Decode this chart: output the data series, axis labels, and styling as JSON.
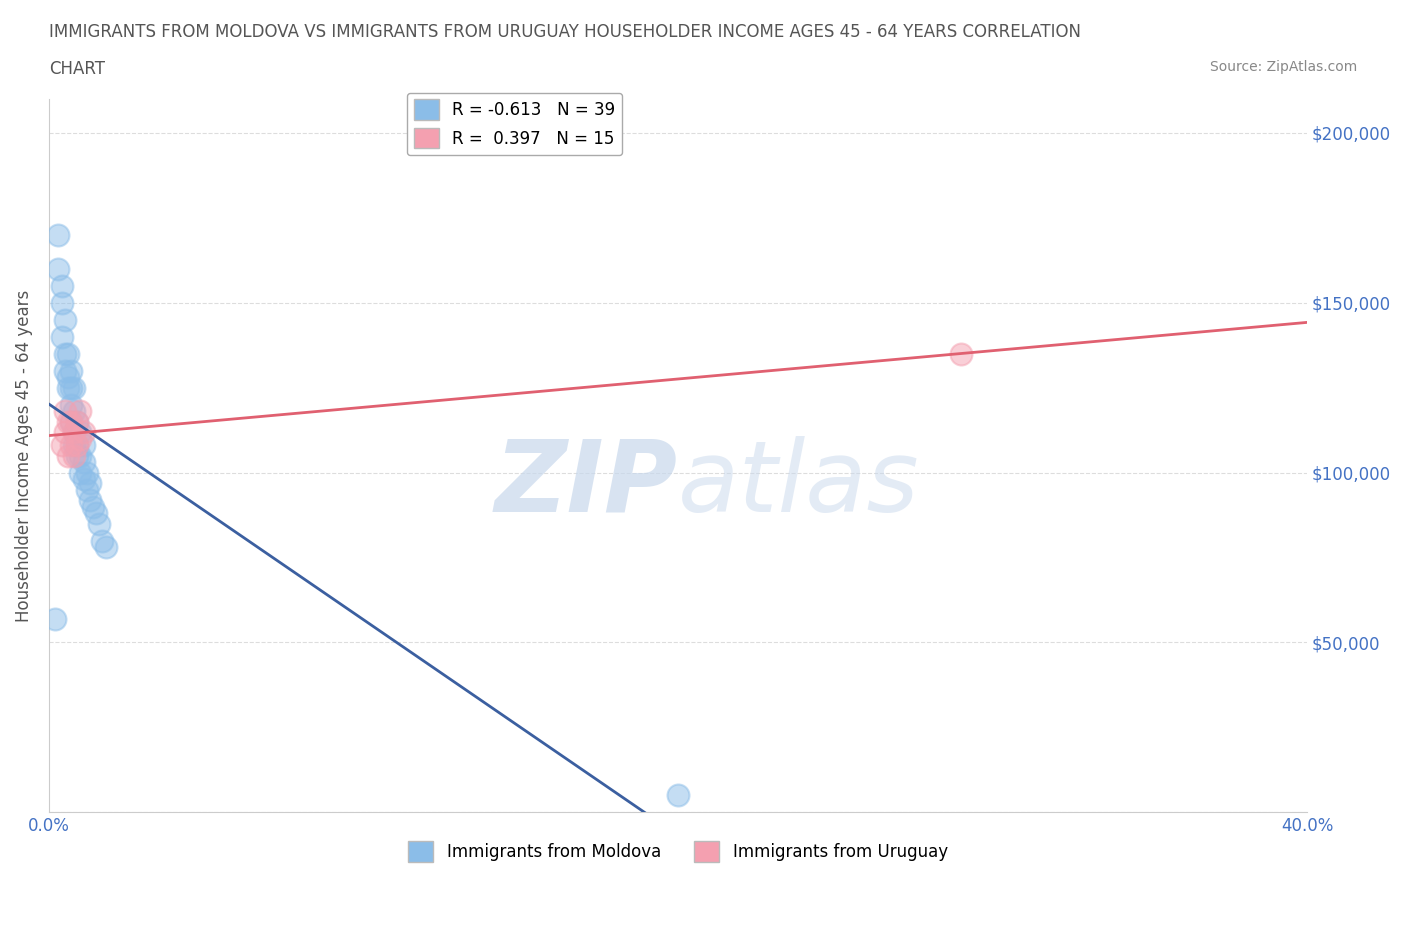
{
  "title_line1": "IMMIGRANTS FROM MOLDOVA VS IMMIGRANTS FROM URUGUAY HOUSEHOLDER INCOME AGES 45 - 64 YEARS CORRELATION",
  "title_line2": "CHART",
  "source": "Source: ZipAtlas.com",
  "ylabel": "Householder Income Ages 45 - 64 years",
  "xlim": [
    0,
    0.4
  ],
  "ylim": [
    0,
    210000
  ],
  "yticks": [
    0,
    50000,
    100000,
    150000,
    200000
  ],
  "ytick_labels": [
    "",
    "$50,000",
    "$100,000",
    "$150,000",
    "$200,000"
  ],
  "xticks": [
    0.0,
    0.05,
    0.1,
    0.15,
    0.2,
    0.25,
    0.3,
    0.35,
    0.4
  ],
  "moldova_color": "#8BBDE8",
  "uruguay_color": "#F4A0B0",
  "moldova_R": -0.613,
  "moldova_N": 39,
  "uruguay_R": 0.397,
  "uruguay_N": 15,
  "moldova_line_color": "#3B5FA0",
  "uruguay_line_color": "#E06070",
  "legend_label_moldova": "Immigrants from Moldova",
  "legend_label_uruguay": "Immigrants from Uruguay",
  "grid_color": "#DDDDDD",
  "background_color": "#FFFFFF",
  "title_color": "#555555",
  "tick_color": "#4472C4",
  "moldova_x": [
    0.002,
    0.003,
    0.003,
    0.004,
    0.004,
    0.004,
    0.005,
    0.005,
    0.005,
    0.006,
    0.006,
    0.006,
    0.007,
    0.007,
    0.007,
    0.007,
    0.008,
    0.008,
    0.008,
    0.008,
    0.009,
    0.009,
    0.009,
    0.01,
    0.01,
    0.01,
    0.011,
    0.011,
    0.011,
    0.012,
    0.012,
    0.013,
    0.013,
    0.014,
    0.015,
    0.016,
    0.017,
    0.018,
    0.2
  ],
  "moldova_y": [
    57000,
    160000,
    170000,
    140000,
    150000,
    155000,
    130000,
    135000,
    145000,
    125000,
    128000,
    135000,
    115000,
    120000,
    125000,
    130000,
    108000,
    112000,
    118000,
    125000,
    105000,
    108000,
    115000,
    100000,
    105000,
    112000,
    98000,
    103000,
    108000,
    95000,
    100000,
    92000,
    97000,
    90000,
    88000,
    85000,
    80000,
    78000,
    5000
  ],
  "uruguay_x": [
    0.004,
    0.005,
    0.005,
    0.006,
    0.006,
    0.007,
    0.007,
    0.008,
    0.008,
    0.009,
    0.009,
    0.01,
    0.01,
    0.011,
    0.29
  ],
  "uruguay_y": [
    108000,
    112000,
    118000,
    105000,
    115000,
    108000,
    115000,
    105000,
    112000,
    108000,
    115000,
    110000,
    118000,
    112000,
    135000
  ]
}
